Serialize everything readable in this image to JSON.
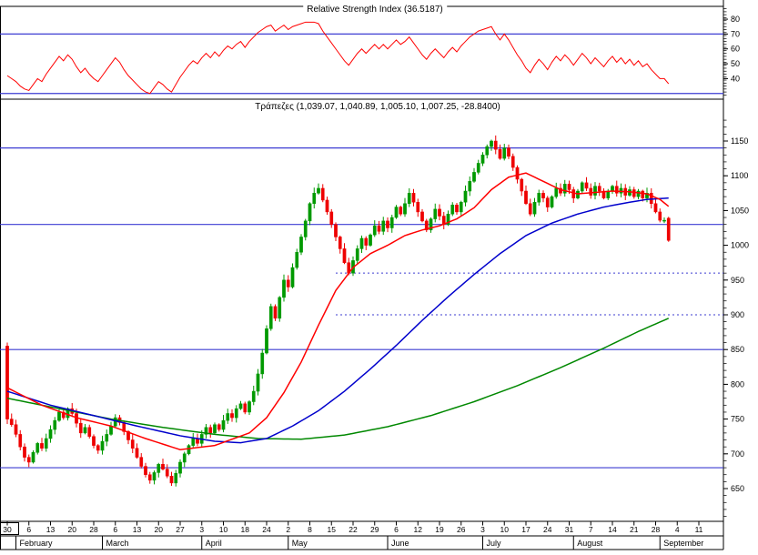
{
  "window": {
    "kind_label": "stock-analysis-chart"
  },
  "colors": {
    "hline_blue": "#3c3cd2",
    "rsi_line": "#ff0000",
    "candle_up": "#009900",
    "candle_down": "#ee0000",
    "ma_fast": "#ff0000",
    "ma_mid": "#0000cc",
    "ma_slow": "#008800",
    "axis": "#000000"
  },
  "chart_data": [
    {
      "type": "line",
      "title": "Relative Strength Index (36.5187)",
      "current_value": 36.5187,
      "ylim": [
        28,
        88
      ],
      "yticks": [
        80,
        70,
        60,
        50,
        40
      ],
      "hlines": [
        70,
        30
      ],
      "legend_position": "none",
      "grid": "off",
      "series": [
        {
          "name": "RSI",
          "values": [
            42,
            40,
            38,
            35,
            33,
            32,
            36,
            40,
            38,
            43,
            47,
            51,
            55,
            52,
            56,
            53,
            48,
            44,
            47,
            43,
            40,
            38,
            42,
            46,
            50,
            54,
            51,
            46,
            42,
            39,
            36,
            33,
            31,
            30,
            34,
            38,
            36,
            33,
            31,
            36,
            41,
            45,
            49,
            52,
            50,
            54,
            57,
            54,
            58,
            55,
            59,
            62,
            60,
            63,
            65,
            61,
            65,
            68,
            71,
            73,
            75,
            76,
            72,
            74,
            76,
            73,
            75,
            76,
            77,
            78,
            78,
            78,
            77,
            72,
            68,
            64,
            60,
            56,
            52,
            49,
            53,
            57,
            60,
            57,
            60,
            63,
            60,
            63,
            60,
            63,
            66,
            63,
            65,
            68,
            64,
            60,
            56,
            53,
            57,
            60,
            57,
            54,
            58,
            61,
            58,
            62,
            65,
            68,
            70,
            72,
            73,
            74,
            75,
            70,
            66,
            70,
            66,
            61,
            56,
            52,
            47,
            44,
            49,
            53,
            50,
            46,
            51,
            55,
            52,
            56,
            53,
            49,
            53,
            57,
            54,
            50,
            54,
            51,
            48,
            52,
            55,
            51,
            54,
            50,
            53,
            49,
            52,
            48,
            50,
            46,
            43,
            40,
            40,
            36.5
          ]
        }
      ]
    },
    {
      "type": "candlestick",
      "title": "Τράπεζες (1,039.07, 1,040.89, 1,005.10, 1,007.25, -28.8400)",
      "last_quote": {
        "open": "1,039.07",
        "high": "1,040.89",
        "low": "1,005.10",
        "close": "1,007.25",
        "change": "-28.8400"
      },
      "ylim": [
        600,
        1190
      ],
      "yticks": [
        1150,
        1100,
        1050,
        1000,
        950,
        900,
        850,
        800,
        750,
        700,
        650
      ],
      "hlines_solid": [
        1140,
        1030,
        850,
        680
      ],
      "hlines_dotted": [
        {
          "value": 960,
          "from_day": 76
        },
        {
          "value": 900,
          "from_day": 76
        }
      ],
      "grid": "off",
      "closes": [
        750,
        742,
        728,
        710,
        695,
        688,
        702,
        715,
        708,
        722,
        735,
        748,
        760,
        752,
        765,
        758,
        744,
        730,
        738,
        725,
        712,
        705,
        718,
        728,
        740,
        752,
        745,
        732,
        720,
        708,
        695,
        682,
        670,
        662,
        673,
        685,
        678,
        668,
        658,
        672,
        688,
        700,
        712,
        722,
        715,
        728,
        738,
        730,
        742,
        735,
        748,
        758,
        752,
        765,
        772,
        760,
        775,
        790,
        815,
        845,
        880,
        912,
        895,
        925,
        950,
        940,
        968,
        990,
        1012,
        1035,
        1060,
        1075,
        1082,
        1065,
        1048,
        1030,
        1012,
        995,
        975,
        960,
        978,
        995,
        1010,
        1000,
        1015,
        1028,
        1020,
        1035,
        1025,
        1040,
        1055,
        1045,
        1060,
        1075,
        1062,
        1048,
        1035,
        1022,
        1038,
        1052,
        1042,
        1030,
        1045,
        1058,
        1048,
        1062,
        1078,
        1092,
        1105,
        1118,
        1130,
        1142,
        1150,
        1138,
        1125,
        1140,
        1128,
        1112,
        1095,
        1078,
        1060,
        1045,
        1062,
        1075,
        1068,
        1055,
        1070,
        1082,
        1075,
        1088,
        1080,
        1068,
        1078,
        1090,
        1082,
        1072,
        1085,
        1078,
        1068,
        1078,
        1085,
        1075,
        1082,
        1072,
        1080,
        1070,
        1078,
        1068,
        1075,
        1060,
        1048,
        1036,
        1036,
        1007
      ],
      "first_candle": [
        855,
        860,
        743,
        750
      ],
      "last_candle": [
        1039,
        1041,
        1005,
        1007
      ],
      "moving_averages": [
        {
          "name": "MA-fast",
          "color_key": "ma_fast",
          "points": [
            [
              0,
              795
            ],
            [
              8,
              770
            ],
            [
              16,
              752
            ],
            [
              24,
              740
            ],
            [
              32,
              722
            ],
            [
              40,
              706
            ],
            [
              48,
              712
            ],
            [
              56,
              730
            ],
            [
              60,
              752
            ],
            [
              64,
              788
            ],
            [
              68,
              832
            ],
            [
              72,
              885
            ],
            [
              76,
              935
            ],
            [
              80,
              968
            ],
            [
              84,
              988
            ],
            [
              88,
              1000
            ],
            [
              92,
              1014
            ],
            [
              96,
              1022
            ],
            [
              100,
              1028
            ],
            [
              104,
              1038
            ],
            [
              108,
              1054
            ],
            [
              112,
              1080
            ],
            [
              116,
              1098
            ],
            [
              120,
              1104
            ],
            [
              124,
              1092
            ],
            [
              128,
              1080
            ],
            [
              132,
              1074
            ],
            [
              136,
              1076
            ],
            [
              140,
              1078
            ],
            [
              144,
              1077
            ],
            [
              148,
              1074
            ],
            [
              151,
              1066
            ],
            [
              153,
              1056
            ]
          ]
        },
        {
          "name": "MA-mid",
          "color_key": "ma_mid",
          "points": [
            [
              0,
              790
            ],
            [
              10,
              770
            ],
            [
              20,
              755
            ],
            [
              30,
              740
            ],
            [
              40,
              726
            ],
            [
              48,
              718
            ],
            [
              54,
              716
            ],
            [
              60,
              722
            ],
            [
              66,
              740
            ],
            [
              72,
              762
            ],
            [
              78,
              790
            ],
            [
              84,
              822
            ],
            [
              90,
              856
            ],
            [
              96,
              892
            ],
            [
              102,
              926
            ],
            [
              108,
              958
            ],
            [
              114,
              988
            ],
            [
              120,
              1014
            ],
            [
              126,
              1032
            ],
            [
              132,
              1045
            ],
            [
              138,
              1055
            ],
            [
              144,
              1062
            ],
            [
              148,
              1066
            ],
            [
              153,
              1068
            ]
          ]
        },
        {
          "name": "MA-slow",
          "color_key": "ma_slow",
          "points": [
            [
              0,
              780
            ],
            [
              12,
              765
            ],
            [
              24,
              750
            ],
            [
              36,
              738
            ],
            [
              48,
              728
            ],
            [
              58,
              722
            ],
            [
              68,
              721
            ],
            [
              78,
              727
            ],
            [
              88,
              739
            ],
            [
              98,
              755
            ],
            [
              108,
              775
            ],
            [
              118,
              798
            ],
            [
              128,
              824
            ],
            [
              138,
              852
            ],
            [
              146,
              876
            ],
            [
              153,
              895
            ]
          ]
        }
      ],
      "x_axis": {
        "tick_labels": [
          "30",
          "6",
          "13",
          "20",
          "28",
          "6",
          "13",
          "20",
          "27",
          "3",
          "10",
          "18",
          "24",
          "2",
          "8",
          "15",
          "22",
          "29",
          "6",
          "12",
          "19",
          "26",
          "3",
          "10",
          "17",
          "24",
          "31",
          "7",
          "14",
          "21",
          "28",
          "4",
          "11"
        ],
        "month_labels": [
          "February",
          "March",
          "April",
          "May",
          "June",
          "July",
          "August",
          "September"
        ],
        "month_start_days": [
          2,
          22,
          45,
          65,
          88,
          110,
          131,
          151
        ]
      }
    }
  ]
}
